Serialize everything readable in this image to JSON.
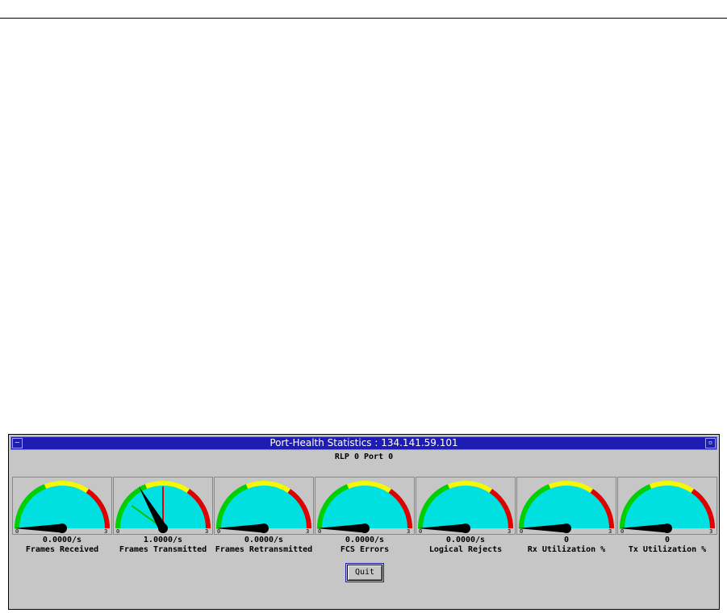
{
  "window": {
    "title": "Port-Health Statistics : 134.141.59.101",
    "subtitle": "RLP 0 Port 0",
    "quit_label": "Quit"
  },
  "colors": {
    "title_bar": "#1d1db4",
    "gauge_face": "#00e0e0",
    "green_band": "#00d000",
    "yellow_band": "#f8f800",
    "red_band": "#e00000",
    "needle": "#000000",
    "peak_marker": "#e00000",
    "avg_marker": "#00c000"
  },
  "gauges": [
    {
      "label": "Frames Received",
      "value_text": "0.0000/s",
      "scale_min": "0",
      "scale_max": "3",
      "value": 0.0
    },
    {
      "label": "Frames Transmitted",
      "value_text": "1.0000/s",
      "scale_min": "0",
      "scale_max": "3",
      "value": 1.0,
      "peak": 1.5,
      "avg": 0.6
    },
    {
      "label": "Frames Retransmitted",
      "value_text": "0.0000/s",
      "scale_min": "0",
      "scale_max": "3",
      "value": 0.0
    },
    {
      "label": "FCS Errors",
      "value_text": "0.0000/s",
      "scale_min": "0",
      "scale_max": "3",
      "value": 0.0
    },
    {
      "label": "Logical Rejects",
      "value_text": "0.0000/s",
      "scale_min": "0",
      "scale_max": "3",
      "value": 0.0
    },
    {
      "label": "Rx Utilization %",
      "value_text": "0",
      "scale_min": "0",
      "scale_max": "3",
      "value": 0.0
    },
    {
      "label": "Tx Utilization %",
      "value_text": "0",
      "scale_min": "0",
      "scale_max": "3",
      "value": 0.0
    }
  ]
}
